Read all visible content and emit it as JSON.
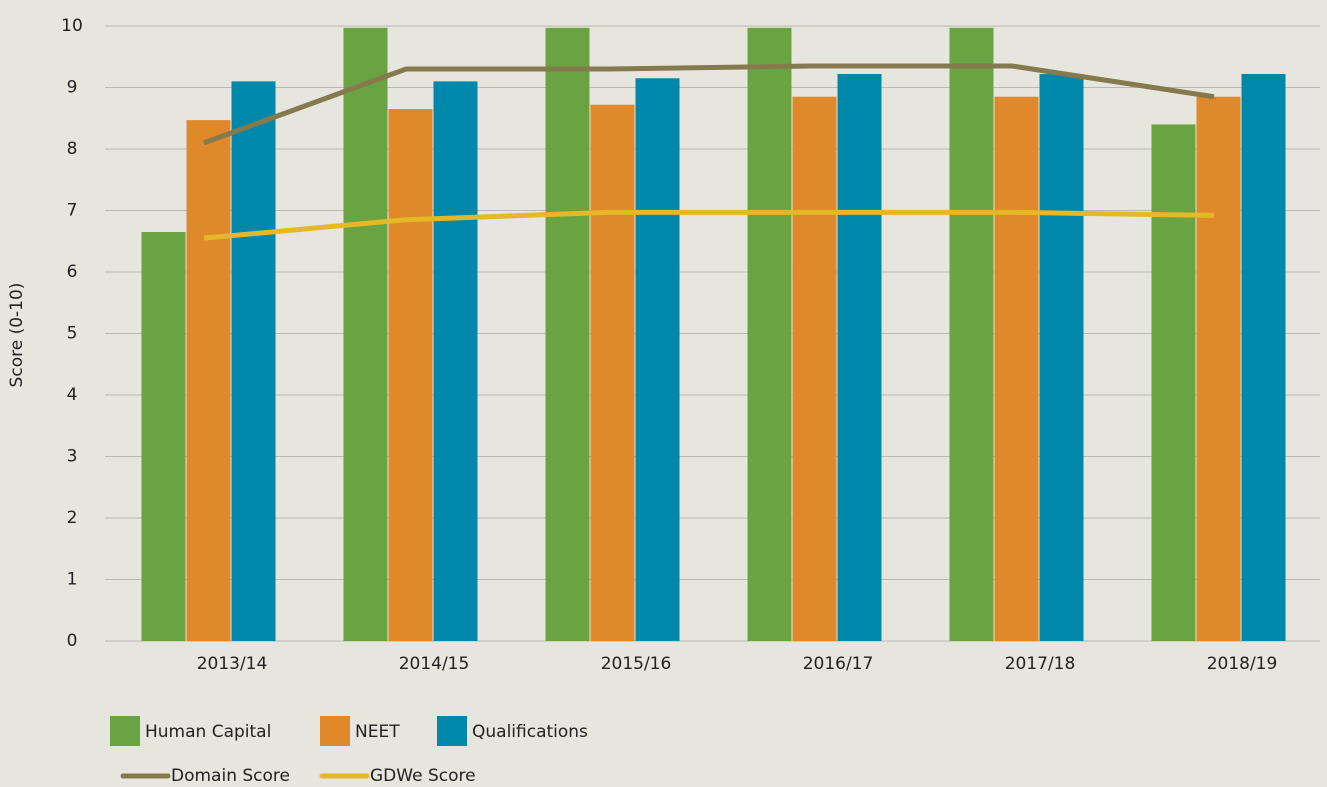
{
  "chart_data": {
    "type": "bar",
    "y_label": "Score (0-10)",
    "categories": [
      "2013/14",
      "2014/15",
      "2015/16",
      "2016/17",
      "2017/18",
      "2018/19"
    ],
    "series": [
      {
        "name": "Human Capital",
        "color": "#6aa342",
        "values": [
          6.65,
          9.97,
          9.97,
          9.97,
          9.97,
          8.4
        ]
      },
      {
        "name": "NEET",
        "color": "#e0892a",
        "values": [
          8.47,
          8.65,
          8.72,
          8.85,
          8.85,
          8.85
        ]
      },
      {
        "name": "Qualifications",
        "color": "#0088aa",
        "values": [
          9.1,
          9.1,
          9.15,
          9.22,
          9.22,
          9.22
        ]
      },
      {
        "name": "Domain Score",
        "type": "line",
        "color": "#857a4e",
        "values": [
          8.1,
          9.3,
          9.3,
          9.35,
          9.35,
          8.85
        ]
      },
      {
        "name": "GDWe Score",
        "type": "line",
        "color": "#e5b827",
        "values": [
          6.55,
          6.85,
          6.97,
          6.97,
          6.97,
          6.92
        ]
      }
    ],
    "ylim": [
      0,
      10
    ],
    "yticks": [
      0,
      1,
      2,
      3,
      4,
      5,
      6,
      7,
      8,
      9,
      10
    ],
    "grid": true,
    "legend": "bottom"
  }
}
